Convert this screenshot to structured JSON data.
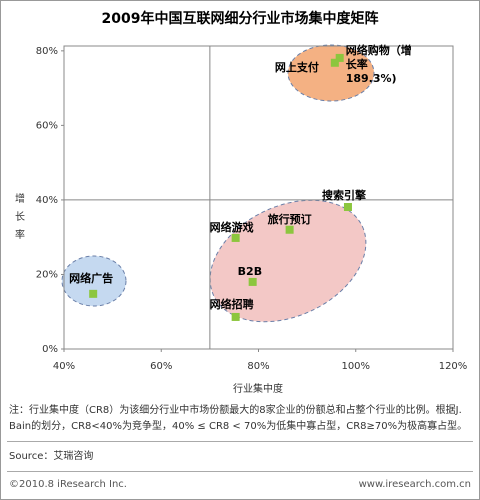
{
  "chart_data": {
    "type": "scatter",
    "title": "2009年中国互联网细分行业市场集中度矩阵",
    "x_label": "行业集中度",
    "y_label": "增长率",
    "xlim": [
      40,
      120
    ],
    "ylim": [
      0,
      81.3
    ],
    "xticks": [
      {
        "value": 40,
        "label": "40%"
      },
      {
        "value": 60,
        "label": "60%"
      },
      {
        "value": 80,
        "label": "80%"
      },
      {
        "value": 100,
        "label": "100%"
      },
      {
        "value": 120,
        "label": "120%"
      }
    ],
    "yticks": [
      {
        "value": 0,
        "label": "0%"
      },
      {
        "value": 20,
        "label": "20%"
      },
      {
        "value": 40,
        "label": "40%"
      },
      {
        "value": 60,
        "label": "60%"
      },
      {
        "value": 80,
        "label": "80%"
      }
    ],
    "quadrant_x": 70,
    "quadrant_y": 40,
    "color": "#8cc63e",
    "points": [
      {
        "label": "网上支付",
        "x": 95.7,
        "y": 76.8
      },
      {
        "label": "网络购物（增长率189.3%)",
        "x": 96.7,
        "y": 78.1
      },
      {
        "label": "搜索引擎",
        "x": 98.4,
        "y": 38.1
      },
      {
        "label": "旅行预订",
        "x": 86.4,
        "y": 32
      },
      {
        "label": "网络游戏",
        "x": 75.3,
        "y": 29.8
      },
      {
        "label": "B2B",
        "x": 78.8,
        "y": 18
      },
      {
        "label": "网络招聘",
        "x": 75.3,
        "y": 8.6
      },
      {
        "label": "网络广告",
        "x": 46,
        "y": 14.8
      }
    ]
  },
  "note": "注：行业集中度（CR8）为该细分行业中市场份额最大的8家企业的份额总和占整个行业的比例。根据J. Bain的划分，CR8<40%为竞争型，40% ≤ CR8 < 70%为低集中寡占型，CR8≥70%为极高寡占型。",
  "source": "Source：艾瑞咨询",
  "footer": {
    "copyright": "©2010.8 iResearch Inc.",
    "url": "www.iresearch.com.cn"
  }
}
